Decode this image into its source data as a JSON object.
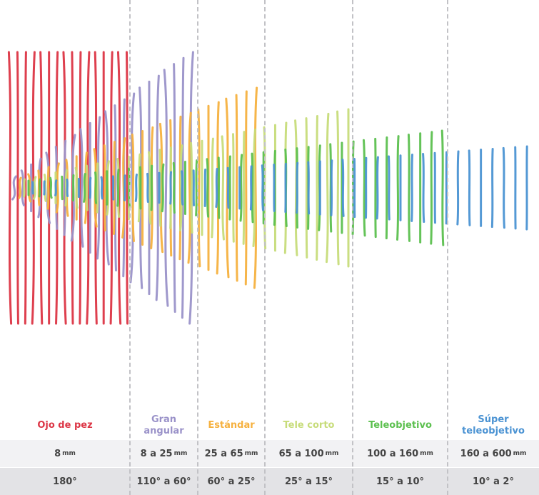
{
  "lenses": [
    {
      "name": "Ojo de pez",
      "focal": "8",
      "focal_unit": "mm",
      "angle": "180°",
      "color": "#dc3545"
    },
    {
      "name": "Gran\nangular",
      "focal": "8 a 25",
      "focal_unit": "mm",
      "angle": "110° a 60°",
      "color": "#9a92c9"
    },
    {
      "name": "Estándar",
      "focal": "25 a 65",
      "focal_unit": "mm",
      "angle": "60° a 25°",
      "color": "#f6b13f"
    },
    {
      "name": "Tele corto",
      "focal": "65 a 100",
      "focal_unit": "mm",
      "angle": "25° a 15°",
      "color": "#c7dc7a"
    },
    {
      "name": "Teleobjetivo",
      "focal": "100 a 160",
      "focal_unit": "mm",
      "angle": "15° a 10°",
      "color": "#5cc04f"
    },
    {
      "name": "Súper\nteleobjetivo",
      "focal": "160 a 600",
      "focal_unit": "mm",
      "angle": "10° a 2°",
      "color": "#4b93d3"
    }
  ]
}
